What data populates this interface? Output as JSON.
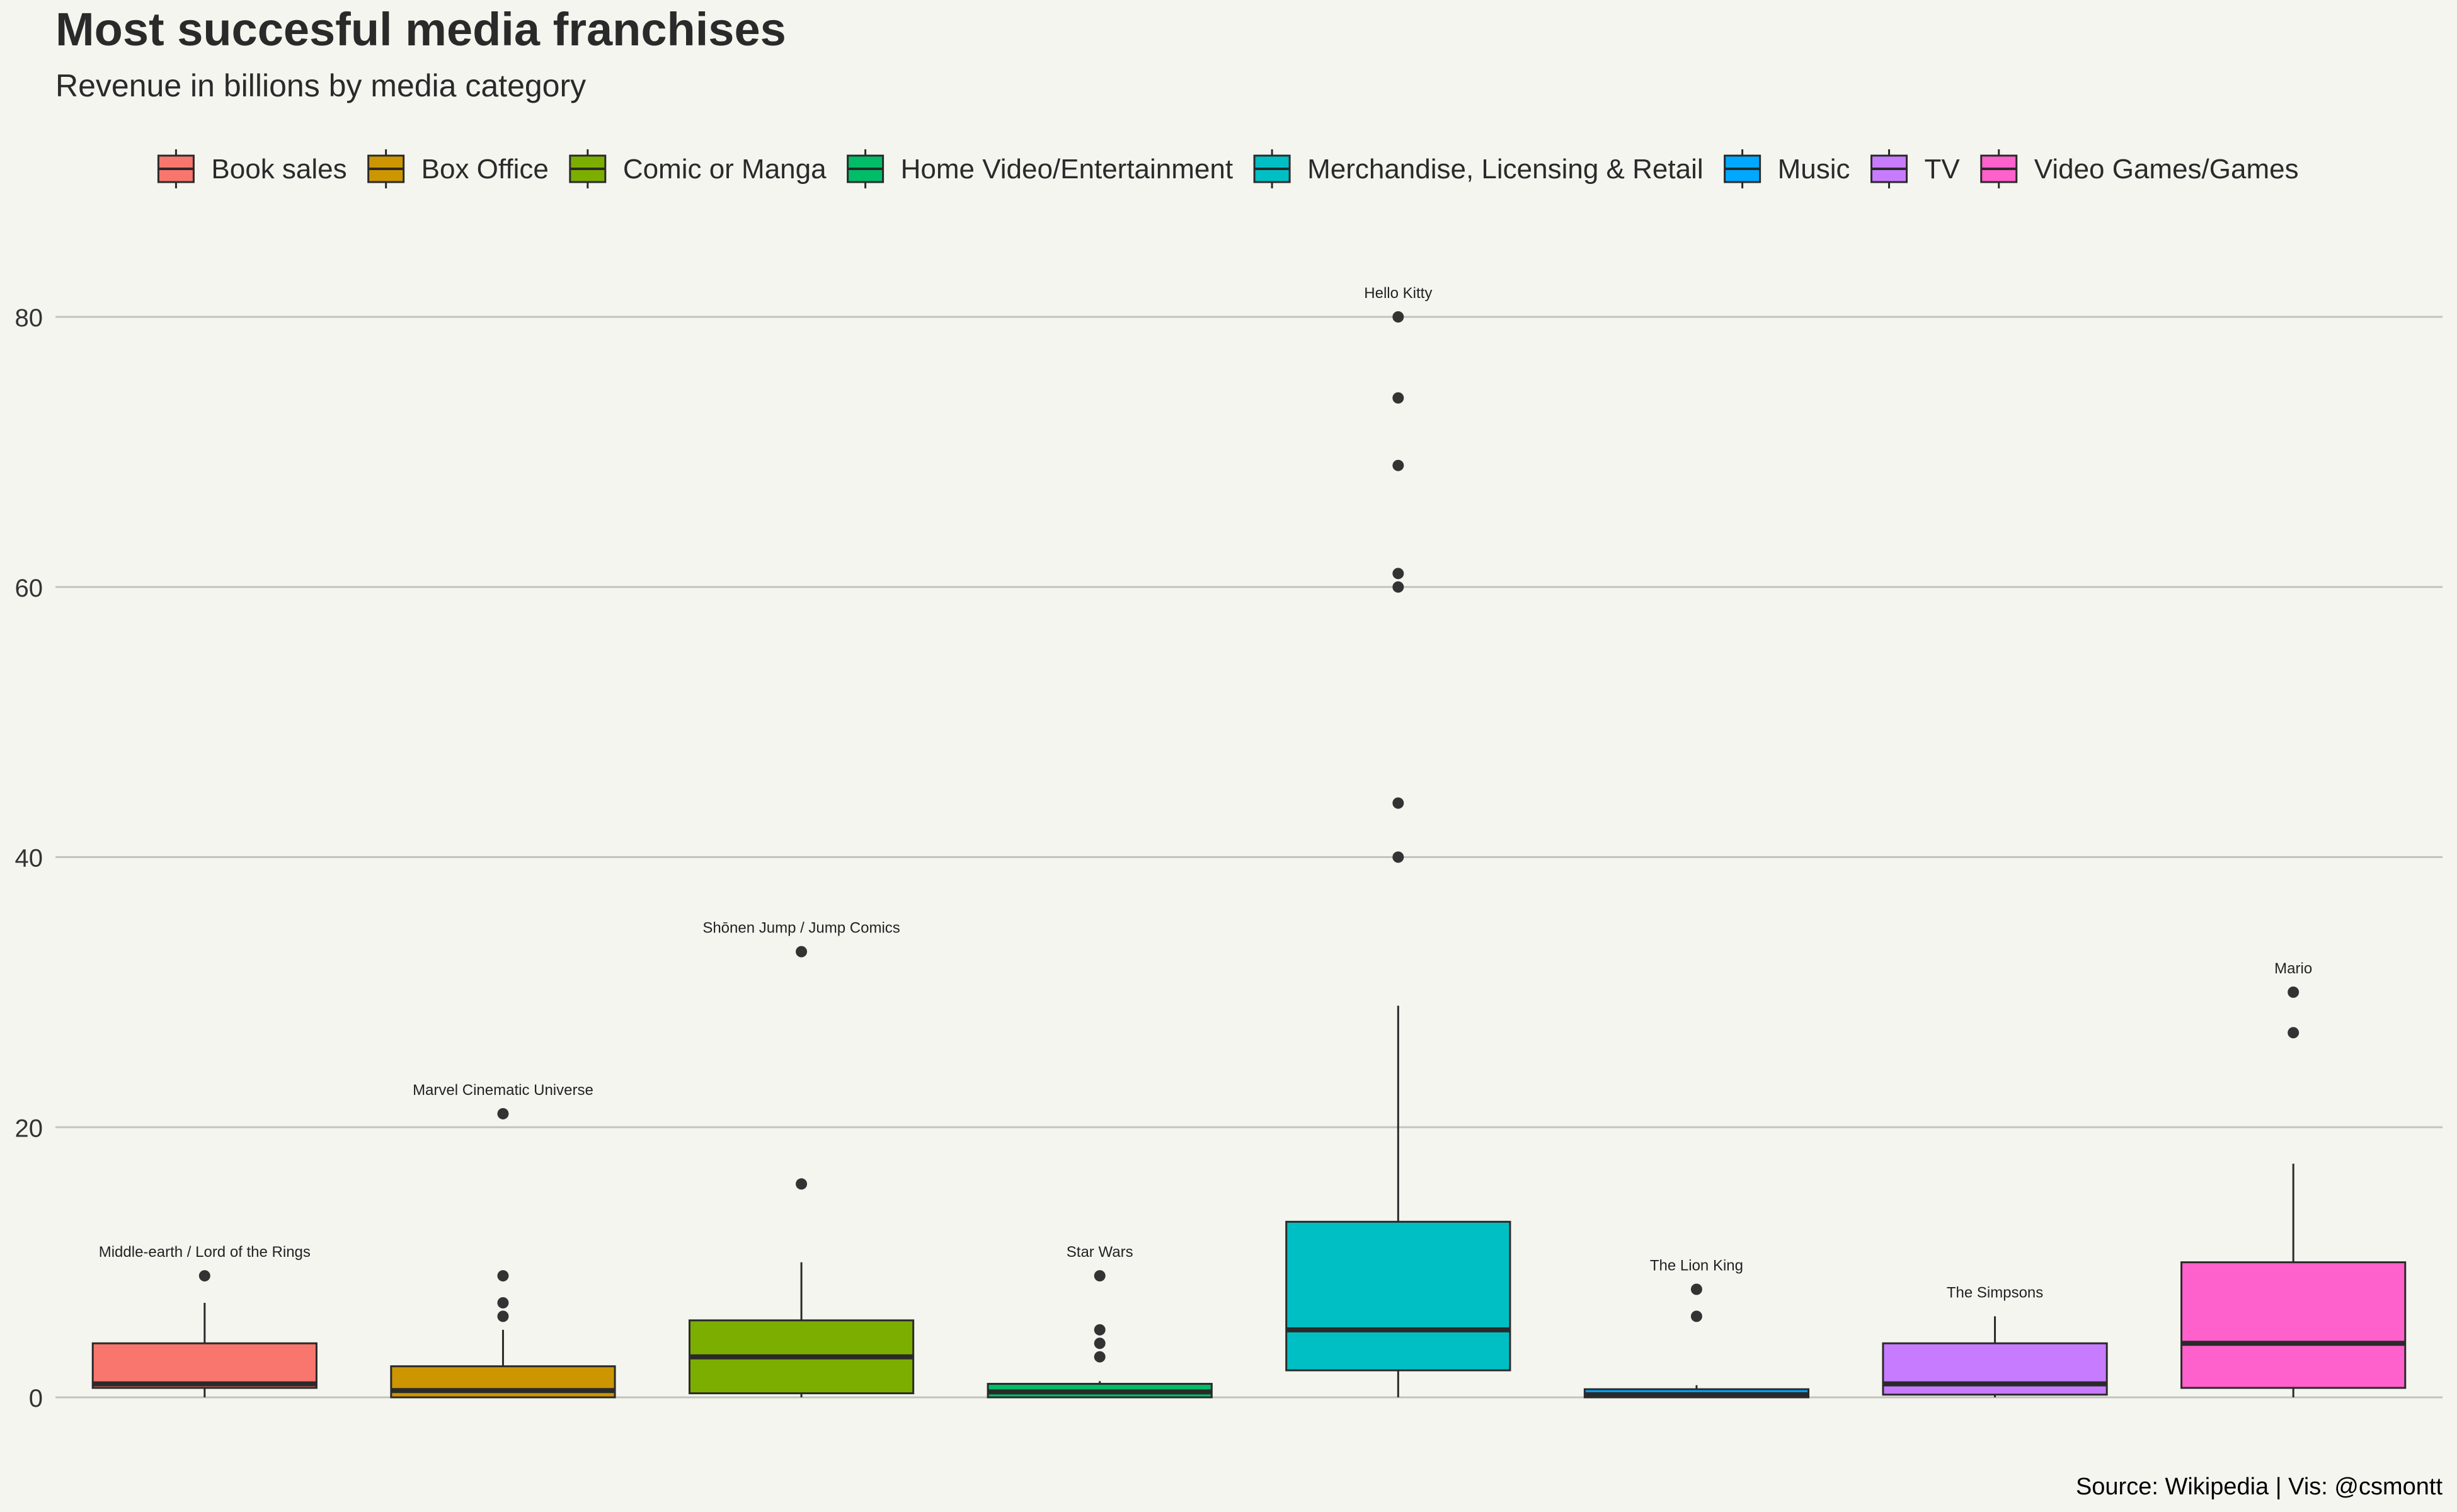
{
  "chart_data": {
    "type": "boxplot",
    "title": "Most succesful media franchises",
    "subtitle": "Revenue in billions by media category",
    "caption": "Source: Wikipedia | Vis: @csmontt",
    "xlabel": "",
    "ylabel": "",
    "ylim": [
      -1.5,
      91
    ],
    "yticks": [
      0,
      20,
      40,
      60,
      80
    ],
    "grid": "horizontal",
    "legend_position": "top",
    "categories": [
      "Book sales",
      "Box Office",
      "Comic or Manga",
      "Home Video/Entertainment",
      "Merchandise, Licensing & Retail",
      "Music",
      "TV",
      "Video Games/Games"
    ],
    "colors": [
      "#F8766D",
      "#CD9600",
      "#7CAE00",
      "#00BE67",
      "#00BFC4",
      "#00A9FF",
      "#C77CFF",
      "#FF61CC"
    ],
    "boxes": [
      {
        "category": "Book sales",
        "lower_whisker": 0.0,
        "q1": 0.7,
        "median": 1.0,
        "q3": 4.0,
        "upper_whisker": 7.0,
        "outliers": [
          9.0
        ],
        "label": "Middle-earth / Lord of the Rings"
      },
      {
        "category": "Box Office",
        "lower_whisker": 0.0,
        "q1": 0.0,
        "median": 0.5,
        "q3": 2.3,
        "upper_whisker": 5.0,
        "outliers": [
          6.0,
          7.0,
          9.0,
          21.0
        ],
        "label": "Marvel Cinematic Universe"
      },
      {
        "category": "Comic or Manga",
        "lower_whisker": 0.0,
        "q1": 0.3,
        "median": 3.0,
        "q3": 5.7,
        "upper_whisker": 10.0,
        "outliers": [
          15.8,
          33.0
        ],
        "label": "Shōnen Jump / Jump Comics"
      },
      {
        "category": "Home Video/Entertainment",
        "lower_whisker": 0.0,
        "q1": 0.0,
        "median": 0.4,
        "q3": 1.0,
        "upper_whisker": 1.2,
        "outliers": [
          3.0,
          4.0,
          5.0,
          9.0
        ],
        "label": "Star Wars"
      },
      {
        "category": "Merchandise, Licensing & Retail",
        "lower_whisker": 0.0,
        "q1": 2.0,
        "median": 5.0,
        "q3": 13.0,
        "upper_whisker": 29.0,
        "outliers": [
          40.0,
          44.0,
          60.0,
          61.0,
          69.0,
          74.0,
          80.0
        ],
        "label": "Hello Kitty"
      },
      {
        "category": "Music",
        "lower_whisker": 0.0,
        "q1": 0.0,
        "median": 0.2,
        "q3": 0.6,
        "upper_whisker": 0.9,
        "outliers": [
          6.0,
          8.0
        ],
        "label": "The Lion King"
      },
      {
        "category": "TV",
        "lower_whisker": 0.0,
        "q1": 0.2,
        "median": 1.0,
        "q3": 4.0,
        "upper_whisker": 6.0,
        "outliers": [],
        "label": "The Simpsons"
      },
      {
        "category": "Video Games/Games",
        "lower_whisker": 0.0,
        "q1": 0.7,
        "median": 4.0,
        "q3": 10.0,
        "upper_whisker": 17.3,
        "outliers": [
          27.0,
          30.0
        ],
        "label": "Mario"
      }
    ]
  }
}
